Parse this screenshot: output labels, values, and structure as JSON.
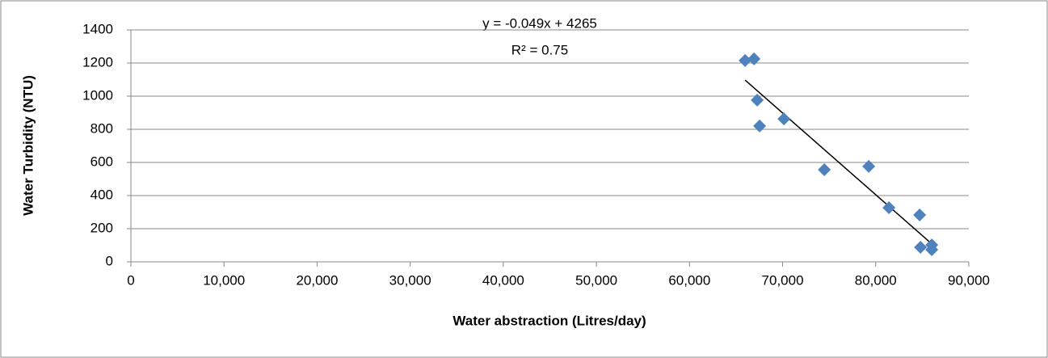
{
  "chart_data": {
    "type": "scatter",
    "x_label": "Water abstraction (Litres/day)",
    "y_label": "Water Turbidity (NTU)",
    "annotations": [
      "y = -0.049x + 4265",
      "R² = 0.75"
    ],
    "series": [
      {
        "color": "#4f81bd",
        "x": [
          65970,
          66930,
          67270,
          67530,
          70140,
          74480,
          79250,
          81420,
          84720,
          84810,
          86020,
          86020
        ],
        "values": [
          1215,
          1225,
          976,
          820,
          863,
          556,
          576,
          327,
          283,
          88,
          102,
          73
        ]
      }
    ],
    "trendline": true,
    "trendline_color": "#000000",
    "xlim": [
      0,
      90000
    ],
    "xticks": [
      0,
      {
        "value": 10000,
        "label": "10,000"
      },
      {
        "value": 20000,
        "label": "20,000"
      },
      {
        "value": 30000,
        "label": "30,000"
      },
      {
        "value": 40000,
        "label": "40,000"
      },
      {
        "value": 50000,
        "label": "50,000"
      },
      {
        "value": 60000,
        "label": "60,000"
      },
      {
        "value": 70000,
        "label": "70,000"
      },
      {
        "value": 80000,
        "label": "80,000"
      },
      {
        "value": 90000,
        "label": "90,000"
      }
    ],
    "ylim": [
      0,
      1400
    ],
    "yticks": [
      0,
      200,
      400,
      600,
      800,
      1000,
      1200,
      1400
    ],
    "grid": true
  }
}
